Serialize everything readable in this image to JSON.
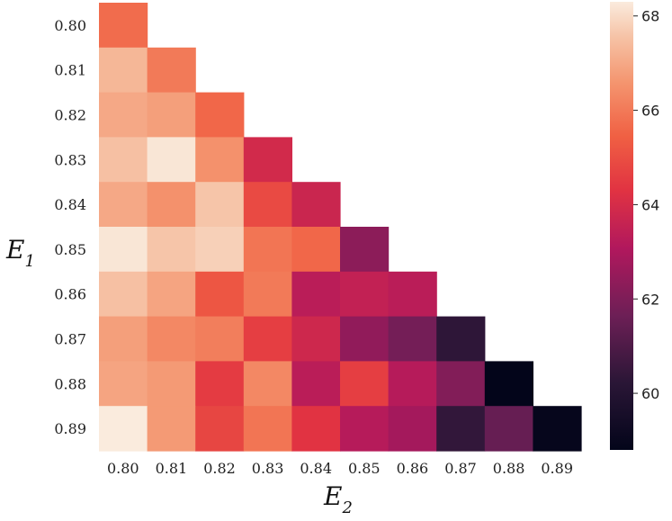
{
  "chart_data": {
    "type": "heatmap",
    "title": "",
    "xlabel": "E",
    "xlabel_sub": "2",
    "ylabel": "E",
    "ylabel_sub": "1",
    "x_categories": [
      "0.80",
      "0.81",
      "0.82",
      "0.83",
      "0.84",
      "0.85",
      "0.86",
      "0.87",
      "0.88",
      "0.89"
    ],
    "y_categories": [
      "0.80",
      "0.81",
      "0.82",
      "0.83",
      "0.84",
      "0.85",
      "0.86",
      "0.87",
      "0.88",
      "0.89"
    ],
    "values": [
      [
        65.7
      ],
      [
        67.3,
        66.0
      ],
      [
        67.0,
        66.8,
        65.6
      ],
      [
        67.5,
        68.2,
        66.5,
        63.9
      ],
      [
        67.0,
        66.5,
        67.6,
        64.9,
        63.7
      ],
      [
        68.2,
        67.6,
        67.8,
        65.9,
        65.6,
        62.3
      ],
      [
        67.5,
        66.9,
        65.2,
        66.0,
        63.3,
        63.5,
        63.3
      ],
      [
        66.8,
        66.3,
        66.1,
        64.6,
        63.8,
        62.4,
        61.8,
        60.3
      ],
      [
        66.9,
        66.7,
        64.5,
        66.3,
        63.3,
        64.6,
        63.2,
        62.1,
        58.8
      ],
      [
        68.3,
        66.7,
        64.8,
        65.9,
        64.3,
        63.2,
        62.8,
        60.4,
        61.5,
        58.9
      ]
    ],
    "colorbar": {
      "min": 58.8,
      "max": 68.3,
      "ticks": [
        60,
        62,
        64,
        66,
        68
      ],
      "colormap": "rocket"
    }
  }
}
